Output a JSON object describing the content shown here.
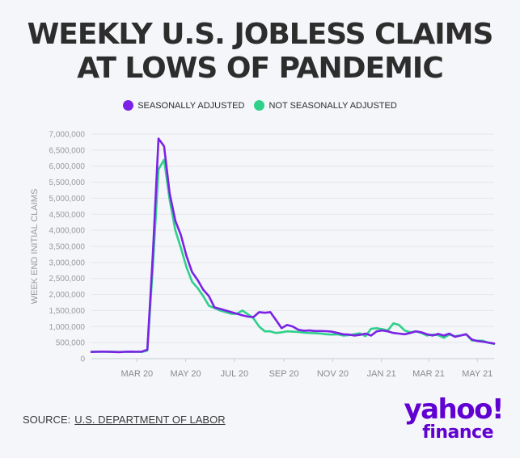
{
  "title_line1": "WEEKLY U.S. JOBLESS CLAIMS",
  "title_line2": "AT LOWS OF PANDEMIC",
  "source_label": "SOURCE:",
  "source_name": "U.S. DEPARTMENT OF LABOR",
  "logo": {
    "line1": "yahoo!",
    "line2": "finance",
    "color": "#6001d2"
  },
  "colors": {
    "seasonally_adjusted": "#7b22e6",
    "not_seasonally_adjusted": "#2ed08a"
  },
  "chart_data": {
    "type": "line",
    "title": "WEEKLY U.S. JOBLESS CLAIMS AT LOWS OF PANDEMIC",
    "xlabel": "",
    "ylabel": "WEEK END INITIAL CLAIMS",
    "ylim": [
      0,
      7000000
    ],
    "yticks": [
      0,
      500000,
      1000000,
      1500000,
      2000000,
      2500000,
      3000000,
      3500000,
      4000000,
      4500000,
      5000000,
      5500000,
      6000000,
      6500000,
      7000000
    ],
    "ytick_labels": [
      "0",
      "500,000",
      "1,000,000",
      "1,500,000",
      "2,000,000",
      "2,500,000",
      "3,000,000",
      "3,500,000",
      "4,000,000",
      "4,500,000",
      "5,000,000",
      "5,500,000",
      "6,000,000",
      "6,500,000",
      "7,000,000"
    ],
    "x_range": [
      "2020-01-04",
      "2021-05-22"
    ],
    "xticks": [
      "2020-03-01",
      "2020-05-01",
      "2020-07-01",
      "2020-09-01",
      "2020-11-01",
      "2021-01-01",
      "2021-03-01",
      "2021-05-01"
    ],
    "xtick_labels": [
      "MAR 20",
      "MAY 20",
      "JUL 20",
      "SEP 20",
      "NOV 20",
      "JAN 21",
      "MAR 21",
      "MAY 21"
    ],
    "grid": true,
    "legend_position": "top-center",
    "x": [
      "2020-01-04",
      "2020-01-11",
      "2020-01-18",
      "2020-01-25",
      "2020-02-01",
      "2020-02-08",
      "2020-02-15",
      "2020-02-22",
      "2020-02-29",
      "2020-03-07",
      "2020-03-14",
      "2020-03-21",
      "2020-03-28",
      "2020-04-04",
      "2020-04-11",
      "2020-04-18",
      "2020-04-25",
      "2020-05-02",
      "2020-05-09",
      "2020-05-16",
      "2020-05-23",
      "2020-05-30",
      "2020-06-06",
      "2020-06-13",
      "2020-06-20",
      "2020-06-27",
      "2020-07-04",
      "2020-07-11",
      "2020-07-18",
      "2020-07-25",
      "2020-08-01",
      "2020-08-08",
      "2020-08-15",
      "2020-08-22",
      "2020-08-29",
      "2020-09-05",
      "2020-09-12",
      "2020-09-19",
      "2020-09-26",
      "2020-10-03",
      "2020-10-10",
      "2020-10-17",
      "2020-10-24",
      "2020-10-31",
      "2020-11-07",
      "2020-11-14",
      "2020-11-21",
      "2020-11-28",
      "2020-12-05",
      "2020-12-12",
      "2020-12-19",
      "2020-12-26",
      "2021-01-02",
      "2021-01-09",
      "2021-01-16",
      "2021-01-23",
      "2021-01-30",
      "2021-02-06",
      "2021-02-13",
      "2021-02-20",
      "2021-02-27",
      "2021-03-06",
      "2021-03-13",
      "2021-03-20",
      "2021-03-27",
      "2021-04-03",
      "2021-04-10",
      "2021-04-17",
      "2021-04-24",
      "2021-05-01",
      "2021-05-08",
      "2021-05-15",
      "2021-05-22"
    ],
    "series": [
      {
        "name": "SEASONALLY ADJUSTED",
        "values": [
          210000,
          215000,
          220000,
          215000,
          210000,
          205000,
          215000,
          220000,
          215000,
          220000,
          280000,
          3300000,
          6860000,
          6620000,
          5150000,
          4300000,
          3850000,
          3200000,
          2700000,
          2450000,
          2150000,
          1950000,
          1600000,
          1550000,
          1500000,
          1450000,
          1400000,
          1350000,
          1310000,
          1300000,
          1450000,
          1430000,
          1450000,
          1200000,
          950000,
          1050000,
          1000000,
          900000,
          870000,
          880000,
          860000,
          860000,
          855000,
          840000,
          800000,
          760000,
          750000,
          720000,
          740000,
          780000,
          720000,
          850000,
          880000,
          850000,
          800000,
          780000,
          760000,
          800000,
          850000,
          820000,
          760000,
          720000,
          770000,
          720000,
          780000,
          680000,
          720000,
          760000,
          600000,
          550000,
          530000,
          500000,
          470000
        ]
      },
      {
        "name": "NOT SEASONALLY ADJUSTED",
        "values": [
          215000,
          220000,
          215000,
          220000,
          215000,
          210000,
          215000,
          220000,
          215000,
          210000,
          250000,
          2900000,
          5900000,
          6200000,
          4950000,
          4000000,
          3450000,
          2850000,
          2400000,
          2200000,
          1950000,
          1650000,
          1580000,
          1500000,
          1450000,
          1400000,
          1400000,
          1500000,
          1380000,
          1250000,
          1000000,
          850000,
          850000,
          800000,
          820000,
          850000,
          840000,
          830000,
          810000,
          800000,
          790000,
          780000,
          760000,
          750000,
          760000,
          720000,
          730000,
          760000,
          790000,
          700000,
          930000,
          950000,
          920000,
          880000,
          1100000,
          1050000,
          880000,
          820000,
          850000,
          800000,
          720000,
          750000,
          730000,
          650000,
          750000,
          700000,
          720000,
          760000,
          570000,
          560000,
          560000,
          490000,
          460000
        ]
      }
    ]
  }
}
